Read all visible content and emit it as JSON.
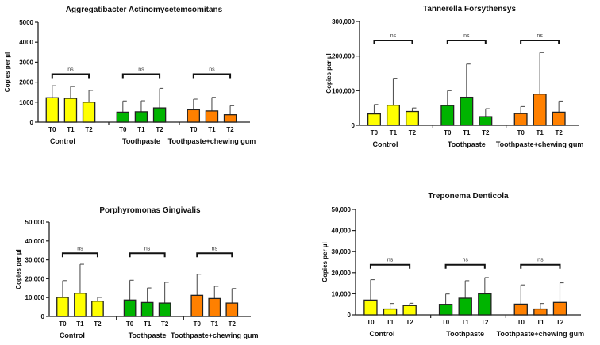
{
  "chart_data": [
    {
      "type": "bar",
      "title": "Aggregatibacter Actinomycetemcomitans",
      "ylabel": "Copies per µl",
      "ylim": [
        0,
        5000
      ],
      "yticks": [
        0,
        1000,
        2000,
        3000,
        4000,
        5000
      ],
      "ytick_labels": [
        "0",
        "1000",
        "2000",
        "3000",
        "4000",
        "5000"
      ],
      "groups": [
        {
          "name": "Control",
          "color": "#ffff00",
          "categories": [
            "T0",
            "T1",
            "T2"
          ],
          "values": [
            1220,
            1190,
            1000
          ],
          "error_upper": [
            1820,
            1780,
            1590
          ],
          "significance": "ns",
          "bracket_level": 2400
        },
        {
          "name": "Toothpaste",
          "color": "#00b400",
          "categories": [
            "T0",
            "T1",
            "T2"
          ],
          "values": [
            500,
            520,
            710
          ],
          "error_upper": [
            1060,
            1070,
            1690
          ],
          "significance": "ns",
          "bracket_level": 2400
        },
        {
          "name": "Toothpaste+chewing gum",
          "color": "#ff8000",
          "categories": [
            "T0",
            "T1",
            "T2"
          ],
          "values": [
            620,
            560,
            370
          ],
          "error_upper": [
            1150,
            1240,
            820
          ],
          "significance": "ns",
          "bracket_level": 2400
        }
      ]
    },
    {
      "type": "bar",
      "title": "Tannerella Forsythensys",
      "ylabel": "Copies per µl",
      "ylim": [
        0,
        300000
      ],
      "yticks": [
        0,
        100000,
        200000,
        300000
      ],
      "ytick_labels": [
        "0",
        "100,000",
        "200,000",
        "300,000"
      ],
      "groups": [
        {
          "name": "Control",
          "color": "#ffff00",
          "categories": [
            "T0",
            "T1",
            "T2"
          ],
          "values": [
            33000,
            58000,
            40000
          ],
          "error_upper": [
            60000,
            136000,
            50000
          ],
          "significance": "ns",
          "bracket_level": 245000
        },
        {
          "name": "Toothpaste",
          "color": "#00b400",
          "categories": [
            "T0",
            "T1",
            "T2"
          ],
          "values": [
            57000,
            81000,
            25000
          ],
          "error_upper": [
            100000,
            177000,
            48000
          ],
          "significance": "ns",
          "bracket_level": 245000
        },
        {
          "name": "Toothpaste+chewing gum",
          "color": "#ff8000",
          "categories": [
            "T0",
            "T1",
            "T2"
          ],
          "values": [
            34000,
            90000,
            38000
          ],
          "error_upper": [
            54000,
            210000,
            70000
          ],
          "significance": "ns",
          "bracket_level": 245000
        }
      ]
    },
    {
      "type": "bar",
      "title": "Porphyromonas Gingivalis",
      "ylabel": "Copies per µl",
      "ylim": [
        0,
        50000
      ],
      "yticks": [
        0,
        10000,
        20000,
        30000,
        40000,
        50000
      ],
      "ytick_labels": [
        "0",
        "10,000",
        "20,000",
        "30,000",
        "40,000",
        "50,000"
      ],
      "groups": [
        {
          "name": "Control",
          "color": "#ffff00",
          "categories": [
            "T0",
            "T1",
            "T2"
          ],
          "values": [
            10100,
            12300,
            8100
          ],
          "error_upper": [
            19000,
            27700,
            10100
          ],
          "significance": "ns",
          "bracket_level": 33500
        },
        {
          "name": "Toothpaste",
          "color": "#00b400",
          "categories": [
            "T0",
            "T1",
            "T2"
          ],
          "values": [
            8700,
            7400,
            7100
          ],
          "error_upper": [
            19200,
            15100,
            18100
          ],
          "significance": "ns",
          "bracket_level": 33500
        },
        {
          "name": "Toothpaste+chewing gum",
          "color": "#ff8000",
          "categories": [
            "T0",
            "T1",
            "T2"
          ],
          "values": [
            11200,
            9500,
            7100
          ],
          "error_upper": [
            22400,
            16000,
            14800
          ],
          "significance": "ns",
          "bracket_level": 33500
        }
      ]
    },
    {
      "type": "bar",
      "title": "Treponema Denticola",
      "ylabel": "Copies per µl",
      "ylim": [
        0,
        50000
      ],
      "yticks": [
        0,
        10000,
        20000,
        30000,
        40000,
        50000
      ],
      "ytick_labels": [
        "0",
        "10,000",
        "20,000",
        "30,000",
        "40,000",
        "50,000"
      ],
      "groups": [
        {
          "name": "Control",
          "color": "#ffff00",
          "categories": [
            "T0",
            "T1",
            "T2"
          ],
          "values": [
            7000,
            2800,
            4400
          ],
          "error_upper": [
            16700,
            5400,
            5500
          ],
          "significance": "ns",
          "bracket_level": 23800
        },
        {
          "name": "Toothpaste",
          "color": "#00b400",
          "categories": [
            "T0",
            "T1",
            "T2"
          ],
          "values": [
            5000,
            7900,
            10000
          ],
          "error_upper": [
            9900,
            16200,
            17700
          ],
          "significance": "ns",
          "bracket_level": 23800
        },
        {
          "name": "Toothpaste+chewing gum",
          "color": "#ff8000",
          "categories": [
            "T0",
            "T1",
            "T2"
          ],
          "values": [
            5100,
            2800,
            5900
          ],
          "error_upper": [
            14200,
            5400,
            15200
          ],
          "significance": "ns",
          "bracket_level": 23800
        }
      ]
    }
  ]
}
